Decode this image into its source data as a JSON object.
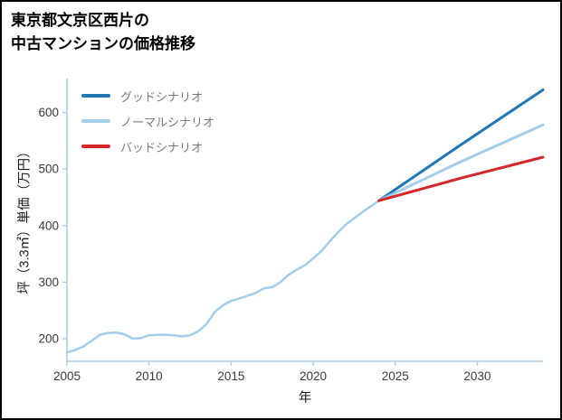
{
  "page": {
    "title_line1": "東京都文京区西片の",
    "title_line2": "中古マンションの価格推移"
  },
  "chart_data": {
    "type": "line",
    "title": "東京都文京区西片の中古マンションの価格推移",
    "xlabel": "年",
    "ylabel": "坪（3.3㎡）単価（万円）",
    "xlim": [
      2005,
      2034
    ],
    "ylim": [
      160,
      660
    ],
    "x_ticks": [
      2005,
      2010,
      2015,
      2020,
      2025,
      2030
    ],
    "y_ticks": [
      200,
      300,
      400,
      500,
      600
    ],
    "grid": false,
    "legend_position": "top-left",
    "style": {
      "axis_color": "#aacde8",
      "tick_label_color": "#3a3a3a",
      "background": "#ffffff"
    },
    "legend_items": [
      {
        "label": "グッドシナリオ",
        "color": "#1f77b4"
      },
      {
        "label": "ノーマルシナリオ",
        "color": "#a2cdec"
      },
      {
        "label": "バッドシナリオ",
        "color": "#d62728"
      }
    ],
    "series": [
      {
        "name": "historical",
        "color": "#a2cdec",
        "width": 2.5,
        "x": [
          2005,
          2005.5,
          2006,
          2006.5,
          2007,
          2007.5,
          2008,
          2008.5,
          2009,
          2009.5,
          2010,
          2010.5,
          2011,
          2011.5,
          2012,
          2012.5,
          2013,
          2013.5,
          2014,
          2014.5,
          2015,
          2015.5,
          2016,
          2016.5,
          2017,
          2017.5,
          2018,
          2018.5,
          2019,
          2019.5,
          2020,
          2020.5,
          2021,
          2021.5,
          2022,
          2022.5,
          2023,
          2023.5,
          2024
        ],
        "values": [
          176,
          180,
          186,
          196,
          207,
          210,
          211,
          208,
          200,
          201,
          206,
          207,
          207,
          206,
          204,
          206,
          213,
          226,
          247,
          259,
          267,
          271,
          276,
          281,
          289,
          291,
          300,
          313,
          322,
          330,
          342,
          355,
          372,
          388,
          402,
          413,
          424,
          434,
          444
        ]
      },
      {
        "name": "グッドシナリオ",
        "color": "#1f77b4",
        "width": 3,
        "x": [
          2024,
          2029,
          2034
        ],
        "values": [
          444,
          543,
          640
        ]
      },
      {
        "name": "ノーマルシナリオ",
        "color": "#a2cdec",
        "width": 3,
        "x": [
          2024,
          2029,
          2034
        ],
        "values": [
          444,
          513,
          578
        ]
      },
      {
        "name": "バッドシナリオ",
        "color": "#d62728",
        "width": 3,
        "x": [
          2024,
          2029,
          2034
        ],
        "values": [
          444,
          484,
          521
        ]
      }
    ]
  }
}
